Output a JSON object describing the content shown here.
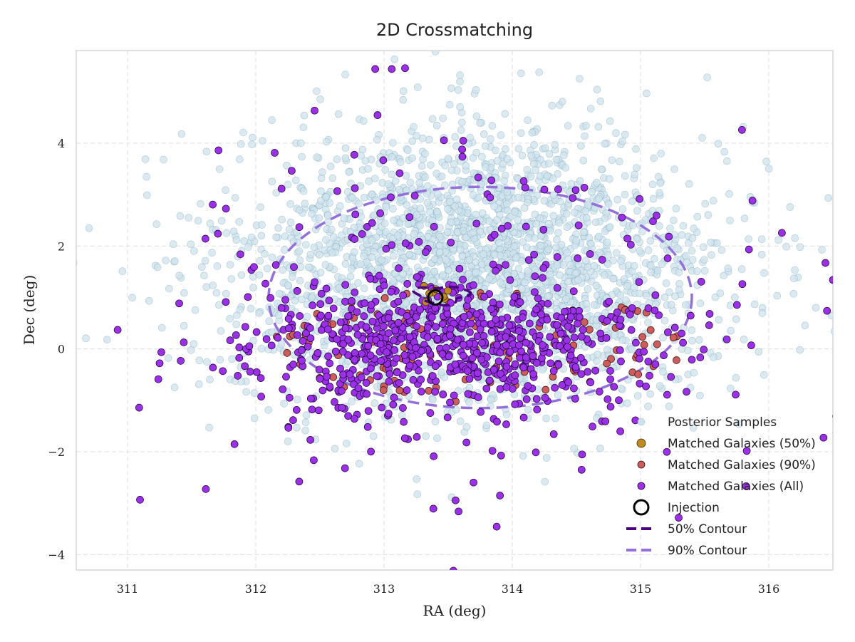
{
  "chart_data": {
    "type": "scatter",
    "title": "2D Crossmatching",
    "xlabel": "RA (deg)",
    "ylabel": "Dec (deg)",
    "xlim": [
      310.6,
      316.5
    ],
    "ylim": [
      -4.3,
      5.8
    ],
    "x_ticks": [
      311,
      312,
      313,
      314,
      315,
      316
    ],
    "x_tick_labels": [
      "311",
      "312",
      "313",
      "314",
      "315",
      "316"
    ],
    "y_ticks": [
      -4,
      -2,
      0,
      2,
      4
    ],
    "y_tick_labels": [
      "−4",
      "−2",
      "0",
      "2",
      "4"
    ],
    "grid": true,
    "legend_position": "lower-right",
    "colors": {
      "posterior": "#cfe3ec",
      "posterior_edge": "#6f9fb8",
      "matched_50": "#c08a20",
      "matched_90": "#cd5c5c",
      "matched_all": "#9b30e8",
      "contour_50": "#4b0082",
      "contour_90": "#9370db",
      "injection": "#000000"
    },
    "injection": {
      "x": 313.4,
      "y": 1.0
    },
    "contours": {
      "c50": {
        "center": [
          313.45,
          1.05
        ],
        "half_width": 0.2,
        "half_height": 0.28
      },
      "c90": {
        "center": [
          313.75,
          1.0
        ],
        "half_width": 1.65,
        "half_height": 2.15
      }
    },
    "sample_counts": {
      "posterior": 2600,
      "matched_all": 900,
      "matched_90": 110,
      "matched_50": 8
    },
    "series": [
      {
        "name": "Posterior Samples",
        "marker": "circle-light"
      },
      {
        "name": "Matched Galaxies (50%)",
        "marker": "circle-gold"
      },
      {
        "name": "Matched Galaxies (90%)",
        "marker": "circle-red"
      },
      {
        "name": "Matched Galaxies (All)",
        "marker": "circle-purple"
      },
      {
        "name": "Injection",
        "marker": "ring-black"
      },
      {
        "name": "50% Contour",
        "marker": "dashed-dark-purple"
      },
      {
        "name": "90% Contour",
        "marker": "dashed-light-purple"
      }
    ]
  }
}
